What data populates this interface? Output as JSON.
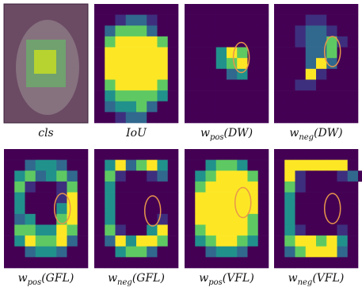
{
  "panels": [
    {
      "label": "cls"
    },
    {
      "label": "IoU"
    },
    {
      "label": "w",
      "sub": "pos",
      "suffix": "(DW)"
    },
    {
      "label": "w",
      "sub": "neg",
      "suffix": "(DW)"
    },
    {
      "label": "w",
      "sub": "pos",
      "suffix": "(GFL)"
    },
    {
      "label": "w",
      "sub": "neg",
      "suffix": "(GFL)"
    },
    {
      "label": "w",
      "sub": "pos",
      "suffix": "(VFL)"
    },
    {
      "label": "w",
      "sub": "neg",
      "suffix": "(VFL)"
    }
  ]
}
